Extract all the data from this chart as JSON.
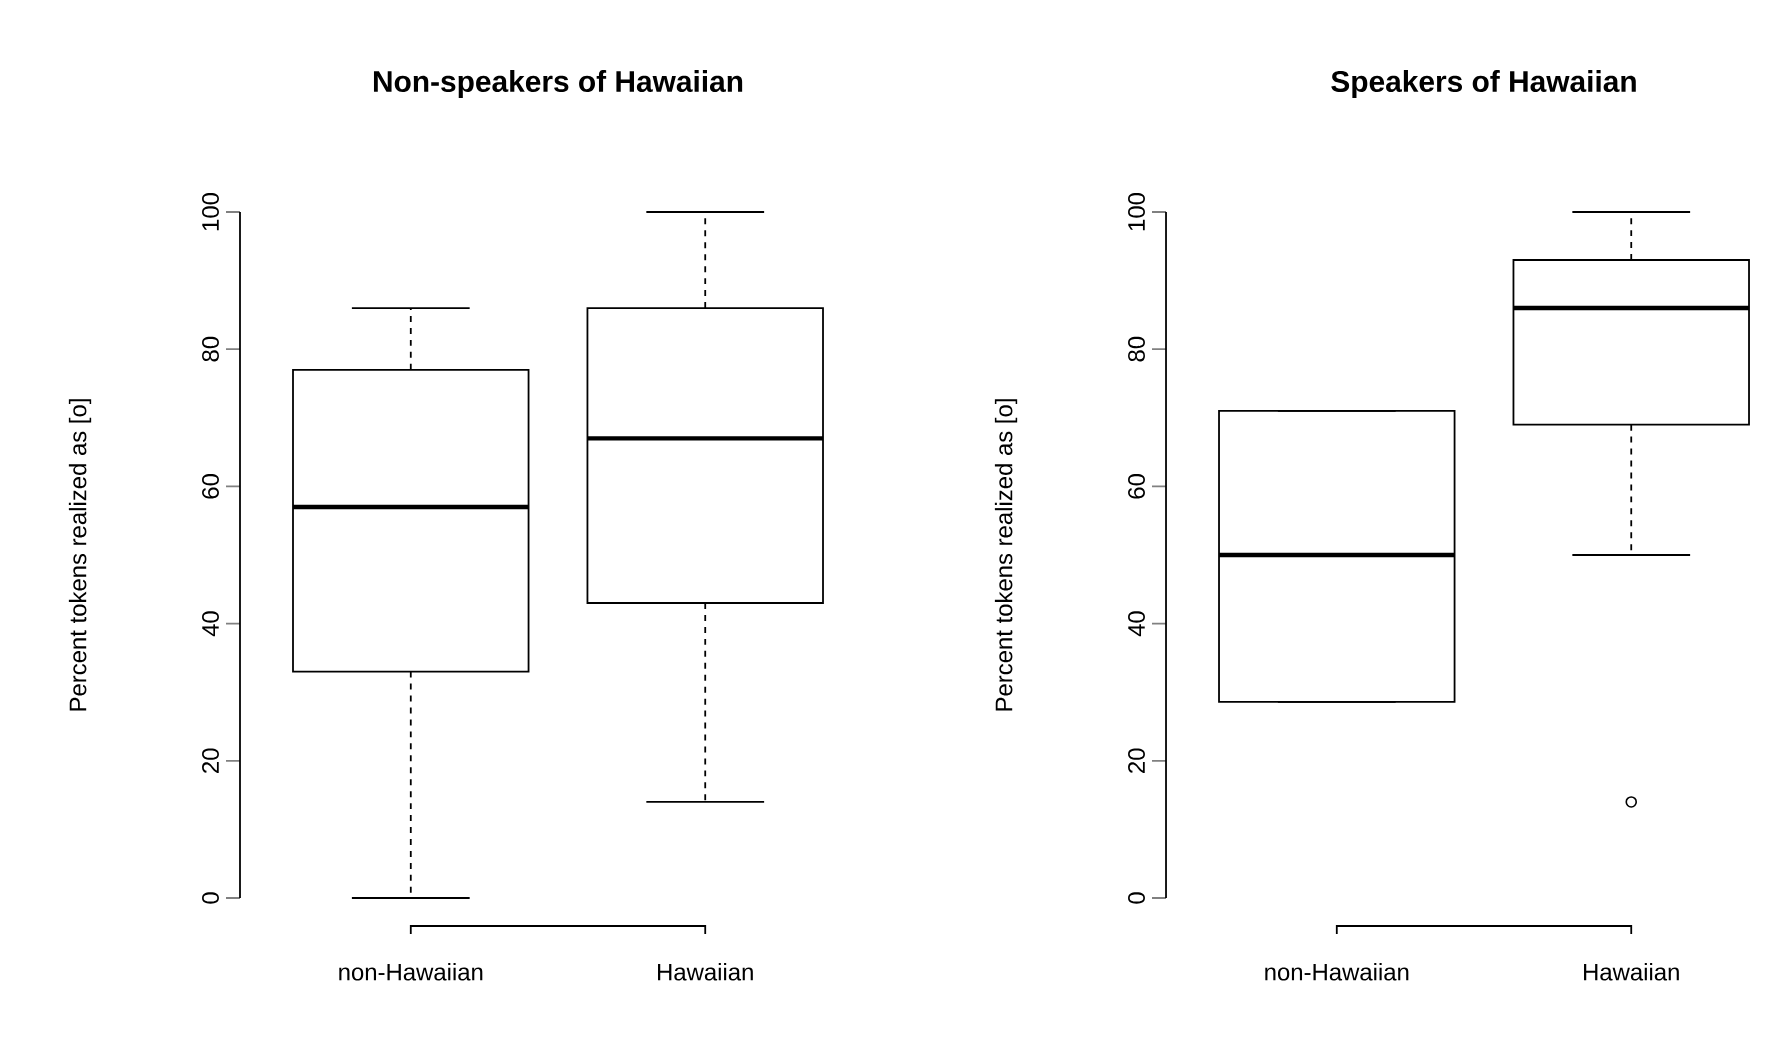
{
  "chart_data": [
    {
      "type": "box",
      "title": "Non-speakers of Hawaiian",
      "ylabel": "Percent tokens realized as [o]",
      "categories": [
        "non-Hawaiian",
        "Hawaiian"
      ],
      "ylim": [
        0,
        100
      ],
      "yticks": [
        0,
        20,
        40,
        60,
        80,
        100
      ],
      "color": "#000000",
      "boxes": [
        {
          "low": 0,
          "q1": 33,
          "median": 57,
          "q3": 77,
          "high": 86
        },
        {
          "low": 14,
          "q1": 43,
          "median": 67,
          "q3": 86,
          "high": 100
        }
      ]
    },
    {
      "type": "box",
      "title": "Speakers of Hawaiian",
      "ylabel": "Percent tokens realized as [o]",
      "categories": [
        "non-Hawaiian",
        "Hawaiian"
      ],
      "ylim": [
        0,
        100
      ],
      "yticks": [
        0,
        20,
        40,
        60,
        80,
        100
      ],
      "color": "#000000",
      "marker": "circle",
      "boxes": [
        {
          "low": 28.6,
          "q1": 28.6,
          "median": 50,
          "q3": 71,
          "high": 71
        },
        {
          "low": 50,
          "q1": 69,
          "median": 86,
          "q3": 93,
          "high": 100,
          "outliers": [
            14
          ]
        }
      ]
    }
  ]
}
